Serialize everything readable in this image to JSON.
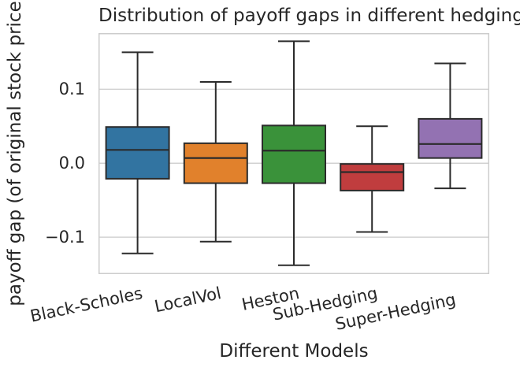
{
  "figure": {
    "title": "Distribution of payoff gaps in different hedging",
    "xlabel": "Different Models",
    "ylabel": "payoff gap (of original stock price",
    "text_color": "#262626",
    "grid_color": "#d2d2d2",
    "spine_color": "#cccccc",
    "box_edge_color": "#2b2b2b",
    "background_color": "#ffffff"
  },
  "chart_data": {
    "type": "box",
    "title": "Distribution of payoff gaps in different hedging",
    "xlabel": "Different Models",
    "ylabel": "payoff gap (of original stock price",
    "categories": [
      "Black-Scholes",
      "LocalVol",
      "Heston",
      "Sub-Hedging",
      "Super-Hedging"
    ],
    "series": [
      {
        "name": "Black-Scholes",
        "color": "#3274a1",
        "whisker_low": -0.122,
        "q1": -0.021,
        "median": 0.018,
        "q3": 0.049,
        "whisker_high": 0.15
      },
      {
        "name": "LocalVol",
        "color": "#e1812c",
        "whisker_low": -0.106,
        "q1": -0.027,
        "median": 0.007,
        "q3": 0.027,
        "whisker_high": 0.11
      },
      {
        "name": "Heston",
        "color": "#3a923a",
        "whisker_low": -0.138,
        "q1": -0.027,
        "median": 0.017,
        "q3": 0.051,
        "whisker_high": 0.165
      },
      {
        "name": "Sub-Hedging",
        "color": "#c03d3e",
        "whisker_low": -0.093,
        "q1": -0.037,
        "median": -0.012,
        "q3": -0.001,
        "whisker_high": 0.05
      },
      {
        "name": "Super-Hedging",
        "color": "#9372b2",
        "whisker_low": -0.034,
        "q1": 0.007,
        "median": 0.026,
        "q3": 0.06,
        "whisker_high": 0.135
      }
    ],
    "yticks": [
      {
        "label": "0.1",
        "value": 0.1
      },
      {
        "label": "0.0",
        "value": 0.0
      },
      {
        "label": "−0.1",
        "value": -0.1
      }
    ],
    "ylim": [
      -0.15,
      0.176
    ],
    "grid": "horizontal",
    "legend": "none",
    "outliers": []
  }
}
